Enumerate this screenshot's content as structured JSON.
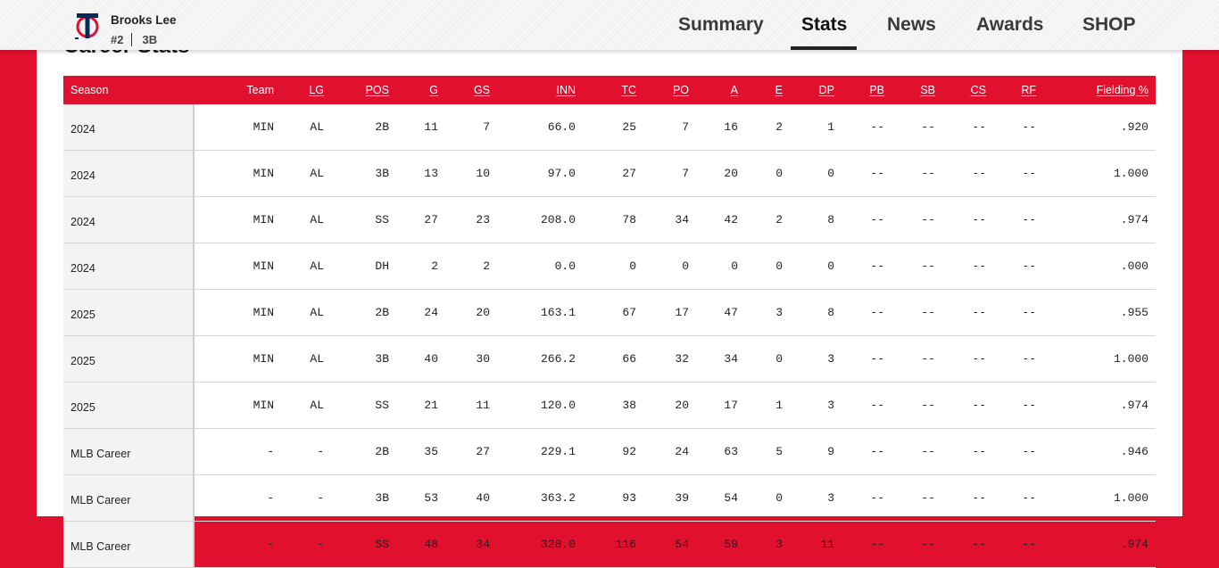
{
  "header": {
    "player_name": "Brooks Lee",
    "number": "#2",
    "position": "3B",
    "logo_icon": "twins-tc-logo-icon",
    "nav": [
      {
        "label": "Summary",
        "active": false
      },
      {
        "label": "Stats",
        "active": true
      },
      {
        "label": "News",
        "active": false
      },
      {
        "label": "Awards",
        "active": false
      },
      {
        "label": "SHOP",
        "active": false
      }
    ]
  },
  "section": {
    "title": "Career Stats"
  },
  "colors": {
    "brand_red": "#e2102f",
    "navy": "#002b5c"
  },
  "table": {
    "columns": [
      "Season",
      "Team",
      "LG",
      "POS",
      "G",
      "GS",
      "INN",
      "TC",
      "PO",
      "A",
      "E",
      "DP",
      "PB",
      "SB",
      "CS",
      "RF",
      "Fielding %"
    ],
    "rows": [
      [
        "2024",
        "MIN",
        "AL",
        "2B",
        "11",
        "7",
        "66.0",
        "25",
        "7",
        "16",
        "2",
        "1",
        "--",
        "--",
        "--",
        "--",
        ".920"
      ],
      [
        "2024",
        "MIN",
        "AL",
        "3B",
        "13",
        "10",
        "97.0",
        "27",
        "7",
        "20",
        "0",
        "0",
        "--",
        "--",
        "--",
        "--",
        "1.000"
      ],
      [
        "2024",
        "MIN",
        "AL",
        "SS",
        "27",
        "23",
        "208.0",
        "78",
        "34",
        "42",
        "2",
        "8",
        "--",
        "--",
        "--",
        "--",
        ".974"
      ],
      [
        "2024",
        "MIN",
        "AL",
        "DH",
        "2",
        "2",
        "0.0",
        "0",
        "0",
        "0",
        "0",
        "0",
        "--",
        "--",
        "--",
        "--",
        ".000"
      ],
      [
        "2025",
        "MIN",
        "AL",
        "2B",
        "24",
        "20",
        "163.1",
        "67",
        "17",
        "47",
        "3",
        "8",
        "--",
        "--",
        "--",
        "--",
        ".955"
      ],
      [
        "2025",
        "MIN",
        "AL",
        "3B",
        "40",
        "30",
        "266.2",
        "66",
        "32",
        "34",
        "0",
        "3",
        "--",
        "--",
        "--",
        "--",
        "1.000"
      ],
      [
        "2025",
        "MIN",
        "AL",
        "SS",
        "21",
        "11",
        "120.0",
        "38",
        "20",
        "17",
        "1",
        "3",
        "--",
        "--",
        "--",
        "--",
        ".974"
      ],
      [
        "MLB Career",
        "-",
        "-",
        "2B",
        "35",
        "27",
        "229.1",
        "92",
        "24",
        "63",
        "5",
        "9",
        "--",
        "--",
        "--",
        "--",
        ".946"
      ],
      [
        "MLB Career",
        "-",
        "-",
        "3B",
        "53",
        "40",
        "363.2",
        "93",
        "39",
        "54",
        "0",
        "3",
        "--",
        "--",
        "--",
        "--",
        "1.000"
      ],
      [
        "MLB Career",
        "-",
        "-",
        "SS",
        "48",
        "34",
        "328.0",
        "116",
        "54",
        "59",
        "3",
        "11",
        "--",
        "--",
        "--",
        "--",
        ".974"
      ]
    ]
  }
}
